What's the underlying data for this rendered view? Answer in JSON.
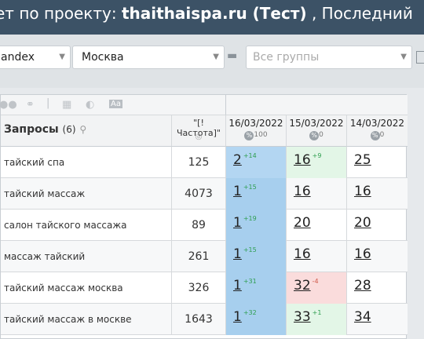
{
  "title": {
    "prefix": "ет по проекту: ",
    "project": "thaithaispa.ru (Тест)",
    "suffix": " , Последний"
  },
  "filters": {
    "engine": "andex",
    "region": "Москва",
    "groups_placeholder": "Все группы"
  },
  "table": {
    "queries_label": "Запросы",
    "queries_count": "(6)",
    "freq_header": "\"[!Частота]\"",
    "dates": [
      {
        "label": "16/03/2022",
        "pct": "100"
      },
      {
        "label": "15/03/2022",
        "pct": "0"
      },
      {
        "label": "14/03/2022",
        "pct": "0"
      }
    ],
    "rows": [
      {
        "keyword": "тайский спа",
        "freq": "125",
        "p1": "2",
        "d1": "+14",
        "p2": "16",
        "d2": "+9",
        "p3": "25"
      },
      {
        "keyword": "тайский массаж",
        "freq": "4073",
        "p1": "1",
        "d1": "+15",
        "p2": "16",
        "d2": "",
        "p3": "16"
      },
      {
        "keyword": "салон тайского массажа",
        "freq": "89",
        "p1": "1",
        "d1": "+19",
        "p2": "20",
        "d2": "",
        "p3": "20"
      },
      {
        "keyword": "массаж тайский",
        "freq": "261",
        "p1": "1",
        "d1": "+15",
        "p2": "16",
        "d2": "",
        "p3": "16"
      },
      {
        "keyword": "тайский массаж москва",
        "freq": "326",
        "p1": "1",
        "d1": "+31",
        "p2": "32",
        "d2": "-4",
        "p3": "28"
      },
      {
        "keyword": "тайский массаж в москве",
        "freq": "1643",
        "p1": "1",
        "d1": "+32",
        "p2": "33",
        "d2": "+1",
        "p3": "34"
      }
    ]
  },
  "colors": {
    "blue": "#b3d6f2",
    "blue2": "#a7cfee",
    "green": "#e3f6e7",
    "red": "#fadcdc"
  }
}
